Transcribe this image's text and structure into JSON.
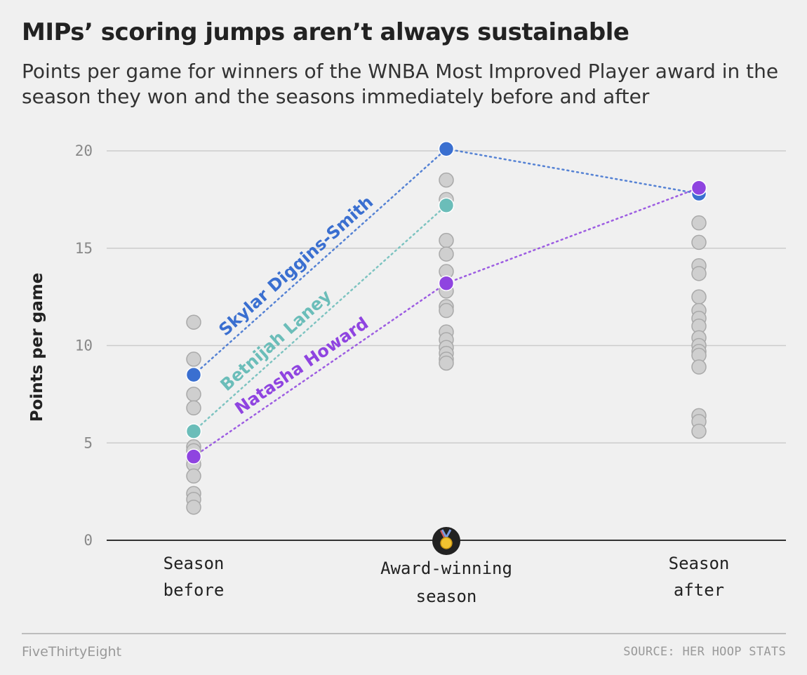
{
  "header": {
    "title": "MIPs’ scoring jumps aren’t always sustainable",
    "subtitle": "Points per game for winners of the WNBA Most Improved Player award in the season they won and the seasons immediately before and after"
  },
  "footer": {
    "brand": "FiveThirtyEight",
    "source": "SOURCE: HER HOOP STATS"
  },
  "chart_data": {
    "type": "scatter",
    "ylabel": "Points per game",
    "ylim": [
      0,
      20
    ],
    "yticks": [
      0,
      5,
      10,
      15,
      20
    ],
    "grid": true,
    "categories": [
      [
        "Season",
        "before"
      ],
      [
        "Award-winning",
        "season"
      ],
      [
        "Season",
        "after"
      ]
    ],
    "award_icon": "gold-medal-icon",
    "colors": {
      "background": "#f0f0f0",
      "grid": "#cccccc",
      "other_dots": "#cfcfcf",
      "other_dots_stroke": "#a9a9a9"
    },
    "other_winners": [
      [
        11.2,
        9.3,
        7.5,
        6.8,
        4.8,
        4.6,
        4.2,
        3.9,
        3.3,
        2.4,
        2.1,
        1.7
      ],
      [
        18.5,
        17.5,
        15.4,
        14.7,
        13.8,
        12.8,
        12.0,
        11.8,
        10.7,
        10.3,
        9.9,
        9.6,
        9.3,
        9.1
      ],
      [
        16.3,
        15.3,
        14.1,
        13.7,
        12.5,
        11.8,
        11.4,
        11.0,
        10.4,
        10.0,
        9.7,
        9.5,
        8.9,
        6.4,
        6.1,
        5.6
      ]
    ],
    "series": [
      {
        "name": "Skylar Diggins-Smith",
        "color": "#3a6fd0",
        "values": [
          8.5,
          20.1,
          17.8
        ]
      },
      {
        "name": "Betnijah Laney",
        "color": "#6bbdb9",
        "values": [
          5.6,
          17.2,
          null
        ]
      },
      {
        "name": "Natasha Howard",
        "color": "#8f44e0",
        "values": [
          4.3,
          13.2,
          18.1
        ]
      }
    ]
  }
}
